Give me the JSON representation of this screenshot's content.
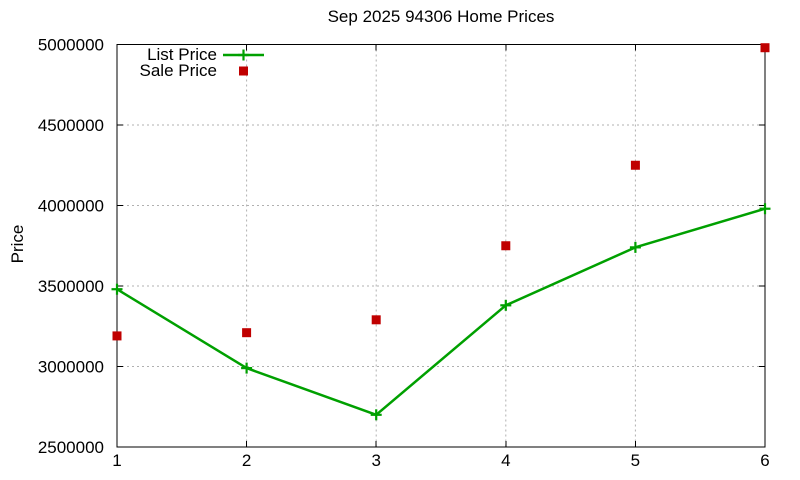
{
  "chart_data": {
    "type": "line",
    "title": "Sep 2025 94306 Home Prices",
    "xlabel": "",
    "ylabel": "Price",
    "x": [
      1,
      2,
      3,
      4,
      5,
      6
    ],
    "x_ticks": [
      1,
      2,
      3,
      4,
      5,
      6
    ],
    "y_ticks": [
      2500000,
      3000000,
      3500000,
      4000000,
      4500000,
      5000000
    ],
    "xlim": [
      1,
      6
    ],
    "ylim": [
      2500000,
      5000000
    ],
    "grid": true,
    "legend_position": "top-left-inside",
    "series": [
      {
        "name": "List Price",
        "plot_style": "linespoints",
        "marker": "plus",
        "color": "#00a000",
        "values": [
          3480000,
          2990000,
          2700000,
          3380000,
          3740000,
          3980000
        ]
      },
      {
        "name": "Sale Price",
        "plot_style": "points",
        "marker": "filled-square",
        "color": "#c00000",
        "values": [
          3190000,
          3210000,
          3290000,
          3750000,
          4250000,
          4980000
        ]
      }
    ],
    "colors": {
      "axis": "#000000",
      "grid": "#b0b0b0",
      "background": "#ffffff"
    }
  }
}
